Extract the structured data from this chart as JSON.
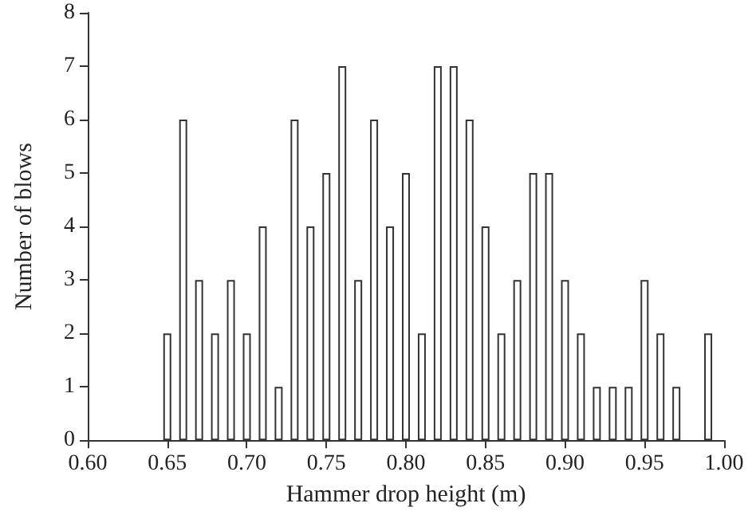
{
  "chart_data": {
    "type": "bar",
    "xlabel": "Hammer drop height (m)",
    "ylabel": "Number of blows",
    "x": [
      0.65,
      0.66,
      0.67,
      0.68,
      0.69,
      0.7,
      0.71,
      0.72,
      0.73,
      0.74,
      0.75,
      0.76,
      0.77,
      0.78,
      0.79,
      0.8,
      0.81,
      0.82,
      0.83,
      0.84,
      0.85,
      0.86,
      0.87,
      0.88,
      0.89,
      0.9,
      0.91,
      0.92,
      0.93,
      0.94,
      0.95,
      0.96,
      0.97,
      0.99
    ],
    "series": [
      {
        "color": "#ffffff",
        "values": [
          2,
          6,
          3,
          2,
          3,
          2,
          4,
          1,
          6,
          4,
          5,
          7,
          3,
          6,
          4,
          5,
          2,
          7,
          7,
          6,
          4,
          2,
          3,
          5,
          5,
          3,
          2,
          1,
          1,
          1,
          3,
          2,
          1,
          2
        ]
      }
    ],
    "xlim": [
      0.6,
      1.0
    ],
    "xticks": [
      {
        "value": 0.6,
        "label": "0.60"
      },
      {
        "value": 0.65,
        "label": "0.65"
      },
      {
        "value": 0.7,
        "label": "0.70"
      },
      {
        "value": 0.75,
        "label": "0.75"
      },
      {
        "value": 0.8,
        "label": "0.80"
      },
      {
        "value": 0.85,
        "label": "0.85"
      },
      {
        "value": 0.9,
        "label": "0.90"
      },
      {
        "value": 0.95,
        "label": "0.95"
      },
      {
        "value": 1.0,
        "label": "1.00"
      }
    ],
    "ylim": [
      0,
      8
    ],
    "yticks": [
      0,
      1,
      2,
      3,
      4,
      5,
      6,
      7,
      8
    ],
    "grid": false
  }
}
